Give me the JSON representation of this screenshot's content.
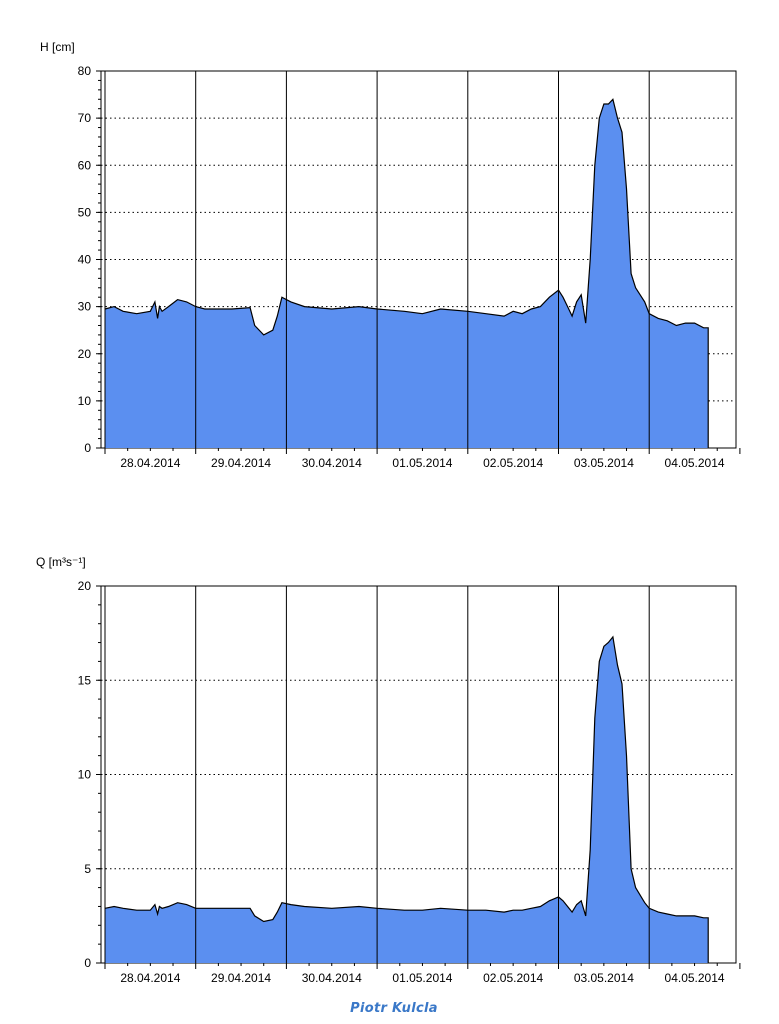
{
  "watermark": "Piotr Kulcla",
  "colors": {
    "fill": "#5b8ff0",
    "line": "#000000",
    "grid": "#000000"
  },
  "chart_data": [
    {
      "type": "area",
      "ylabel": "H [cm]",
      "ylim": [
        0,
        80
      ],
      "yticks": [
        0,
        10,
        20,
        30,
        40,
        50,
        60,
        70,
        80
      ],
      "grid": "dotted horizontal, solid vertical at day boundaries",
      "categories": [
        "28.04.2014",
        "29.04.2014",
        "30.04.2014",
        "01.05.2014",
        "02.05.2014",
        "03.05.2014",
        "04.05.2014"
      ],
      "xlim": [
        0,
        7
      ],
      "series": [
        {
          "x": [
            0,
            0.1,
            0.2,
            0.35,
            0.5,
            0.55,
            0.58,
            0.6,
            0.63,
            0.7,
            0.8,
            0.9,
            1.0,
            1.1,
            1.2,
            1.4,
            1.6,
            1.65,
            1.75,
            1.85,
            1.9,
            1.95,
            2.05,
            2.2,
            2.5,
            2.8,
            3.0,
            3.3,
            3.5,
            3.7,
            4.0,
            4.2,
            4.4,
            4.5,
            4.6,
            4.7,
            4.8,
            4.9,
            5.0,
            5.05,
            5.1,
            5.15,
            5.2,
            5.25,
            5.3,
            5.35,
            5.4,
            5.45,
            5.5,
            5.55,
            5.6,
            5.65,
            5.7,
            5.75,
            5.8,
            5.85,
            5.95,
            6.0,
            6.1,
            6.2,
            6.3,
            6.4,
            6.5,
            6.6,
            6.65
          ],
          "values": [
            29.5,
            30,
            29,
            28.5,
            29,
            31,
            27.5,
            30,
            29,
            30,
            31.5,
            31,
            30,
            29.5,
            29.5,
            29.5,
            29.8,
            26,
            24,
            25,
            28,
            32,
            31,
            30,
            29.5,
            30,
            29.5,
            29,
            28.5,
            29.5,
            29,
            28.5,
            28,
            29,
            28.5,
            29.5,
            30,
            32,
            33.5,
            32,
            30,
            28,
            31,
            32.5,
            26.5,
            40,
            60,
            70,
            73,
            73,
            74,
            70,
            67,
            55,
            37,
            34,
            31,
            28.5,
            27.5,
            27,
            26,
            26.5,
            26.5,
            25.5,
            25.5
          ]
        }
      ]
    },
    {
      "type": "area",
      "ylabel": "Q [m³s⁻¹]",
      "ylim": [
        0,
        20
      ],
      "yticks": [
        0,
        5,
        10,
        15,
        20
      ],
      "grid": "dotted horizontal, solid vertical at day boundaries",
      "categories": [
        "28.04.2014",
        "29.04.2014",
        "30.04.2014",
        "01.05.2014",
        "02.05.2014",
        "03.05.2014",
        "04.05.2014"
      ],
      "xlim": [
        0,
        7
      ],
      "series": [
        {
          "x": [
            0,
            0.1,
            0.2,
            0.35,
            0.5,
            0.55,
            0.58,
            0.6,
            0.63,
            0.7,
            0.8,
            0.9,
            1.0,
            1.1,
            1.2,
            1.4,
            1.6,
            1.65,
            1.75,
            1.85,
            1.9,
            1.95,
            2.05,
            2.2,
            2.5,
            2.8,
            3.0,
            3.3,
            3.5,
            3.7,
            4.0,
            4.2,
            4.4,
            4.5,
            4.6,
            4.7,
            4.8,
            4.9,
            5.0,
            5.05,
            5.1,
            5.15,
            5.2,
            5.25,
            5.3,
            5.35,
            5.4,
            5.45,
            5.5,
            5.55,
            5.6,
            5.65,
            5.7,
            5.75,
            5.8,
            5.85,
            5.95,
            6.0,
            6.1,
            6.2,
            6.3,
            6.4,
            6.5,
            6.6,
            6.65
          ],
          "values": [
            2.9,
            3.0,
            2.9,
            2.8,
            2.8,
            3.1,
            2.6,
            3.0,
            2.9,
            3.0,
            3.2,
            3.1,
            2.9,
            2.9,
            2.9,
            2.9,
            2.9,
            2.5,
            2.2,
            2.3,
            2.7,
            3.2,
            3.1,
            3.0,
            2.9,
            3.0,
            2.9,
            2.8,
            2.8,
            2.9,
            2.8,
            2.8,
            2.7,
            2.8,
            2.8,
            2.9,
            3.0,
            3.3,
            3.5,
            3.3,
            3.0,
            2.7,
            3.1,
            3.3,
            2.5,
            6.0,
            13.0,
            16.0,
            16.8,
            17.0,
            17.3,
            15.8,
            14.8,
            11.0,
            5.0,
            4.0,
            3.2,
            2.9,
            2.7,
            2.6,
            2.5,
            2.5,
            2.5,
            2.4,
            2.4
          ]
        }
      ]
    }
  ]
}
